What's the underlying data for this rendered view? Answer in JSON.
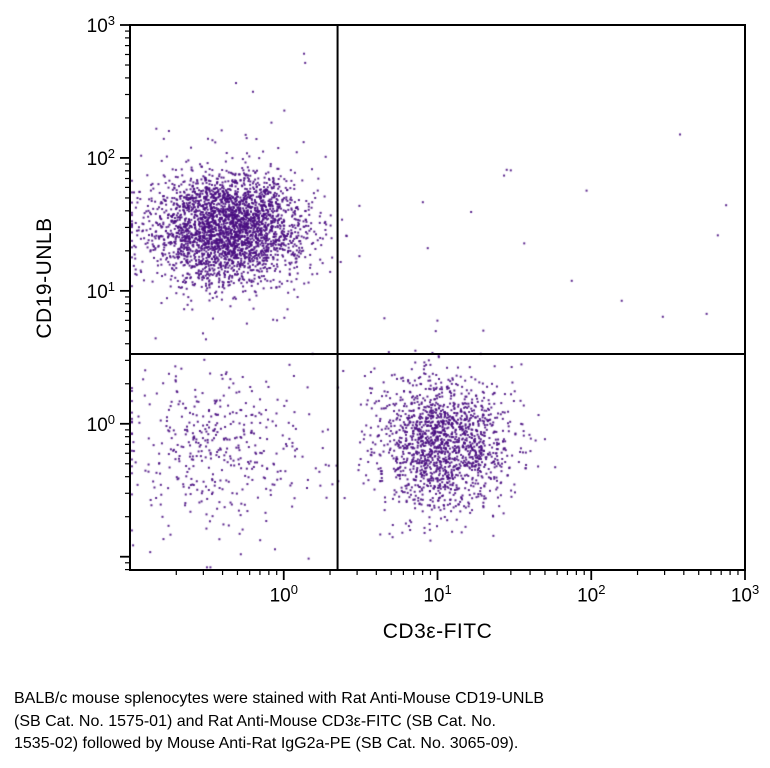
{
  "figure": {
    "background": "#ffffff",
    "dot_color": "#4a0f82",
    "axis_color": "#000000",
    "gate_line_color": "#000000"
  },
  "chart_data": {
    "type": "scatter",
    "title": "",
    "xlabel": "CD3ε-FITC",
    "ylabel": "CD19-UNLB",
    "x_scale": "log",
    "y_scale": "log",
    "tick_base": "10",
    "x_range_log10": [
      -1.0,
      3.0
    ],
    "y_range_log10": [
      -1.1,
      3.0
    ],
    "x_major_tick_exponents": [
      0,
      1,
      2,
      3
    ],
    "y_major_tick_exponents": [
      0,
      1,
      2,
      3
    ],
    "grid": false,
    "legend": "none",
    "quadrant_gate": {
      "x_log10": 0.35,
      "y_log10": 0.525
    },
    "seed": 20,
    "populations": [
      {
        "name": "CD19+ B cells (upper left)",
        "dist": "gaussian",
        "count": 3000,
        "cx": -0.36,
        "cy": 1.47,
        "sx": 0.25,
        "sy": 0.21
      },
      {
        "name": "CD3+ T cells (lower right)",
        "dist": "gaussian",
        "count": 1600,
        "cx": 1.03,
        "cy": -0.15,
        "sx": 0.22,
        "sy": 0.26
      },
      {
        "name": "double negative (lower left)",
        "dist": "gaussian",
        "count": 420,
        "cx": -0.42,
        "cy": -0.18,
        "sx": 0.3,
        "sy": 0.3
      },
      {
        "name": "sparse upper left outliers",
        "dist": "uniform",
        "count": 10,
        "x_range": [
          -0.9,
          0.3
        ],
        "y_range": [
          1.9,
          2.88
        ]
      },
      {
        "name": "sparse upper right events",
        "dist": "uniform",
        "count": 16,
        "x_range": [
          0.5,
          2.95
        ],
        "y_range": [
          0.6,
          2.2
        ]
      }
    ]
  },
  "caption": {
    "lines": [
      "BALB/c mouse splenocytes were stained with Rat Anti-Mouse CD19-UNLB",
      "(SB Cat. No. 1575-01) and Rat Anti-Mouse CD3ε-FITC (SB Cat. No.",
      "1535-02) followed by Mouse Anti-Rat IgG2a-PE (SB Cat. No. 3065-09)."
    ]
  }
}
